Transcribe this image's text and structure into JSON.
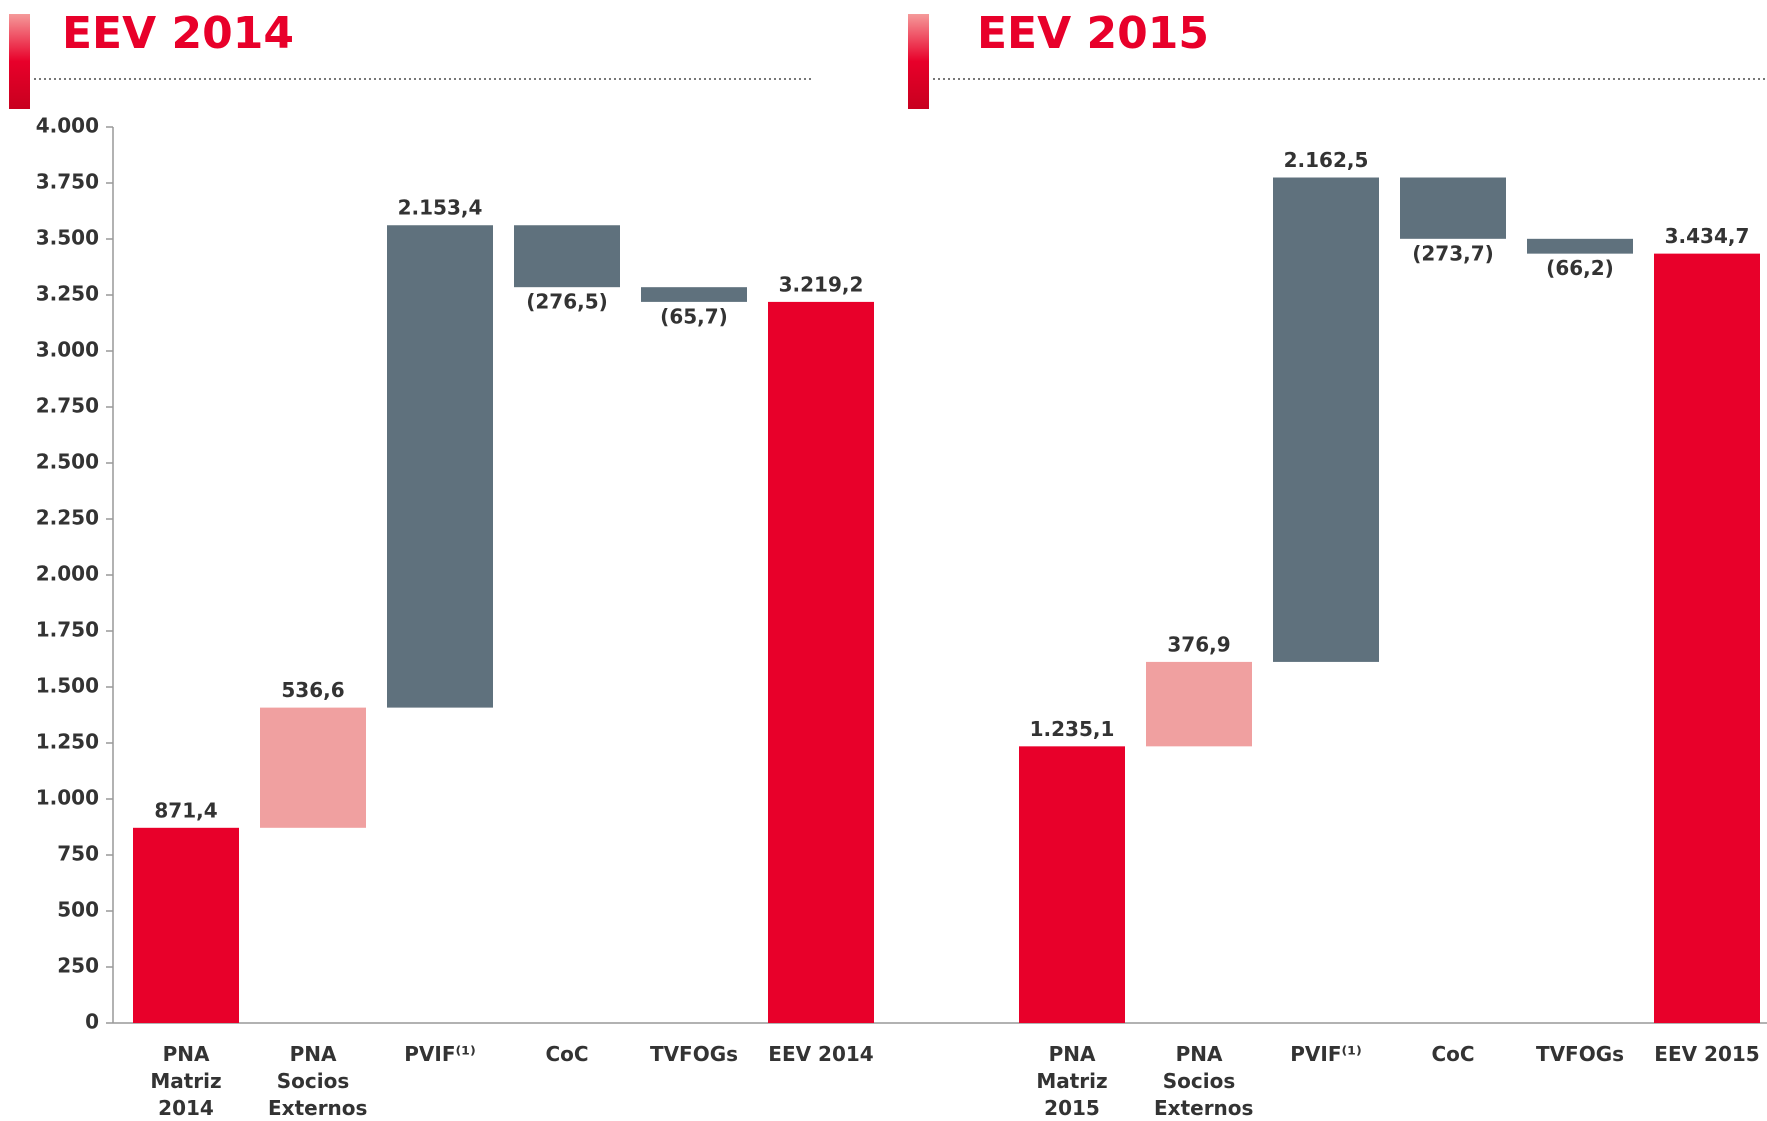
{
  "chart_data": [
    {
      "type": "waterfall",
      "title": "EEV 2014",
      "categories": [
        "PNA Matriz 2014",
        "PNA Socios Externos",
        "PVIF⁽¹⁾",
        "CoC",
        "TVFOGs",
        "EEV 2014"
      ],
      "values": [
        871.4,
        536.6,
        2153.4,
        -276.5,
        -65.7,
        3219.2
      ],
      "value_labels": [
        "871,4",
        "536,6",
        "2.153,4",
        "(276,5)",
        "(65,7)",
        "3.219,2"
      ],
      "colors": [
        "#e8002a",
        "#f0a0a0",
        "#5f717d",
        "#5f717d",
        "#5f717d",
        "#e8002a"
      ],
      "ylim": [
        0,
        4000
      ],
      "yticks": [
        0,
        250,
        500,
        750,
        {
          "value": 1000,
          "label": "1.000"
        },
        {
          "value": 1250,
          "label": "1.250"
        },
        {
          "value": 1500,
          "label": "1.500"
        },
        {
          "value": 1750,
          "label": "1.750"
        },
        {
          "value": 2000,
          "label": "2.000"
        },
        {
          "value": 2250,
          "label": "2.250"
        },
        {
          "value": 2500,
          "label": "2.500"
        },
        {
          "value": 2750,
          "label": "2.750"
        },
        {
          "value": 3000,
          "label": "3.000"
        },
        {
          "value": 3250,
          "label": "3.250"
        },
        {
          "value": 3500,
          "label": "3.500"
        },
        {
          "value": 3750,
          "label": "3.750"
        },
        {
          "value": 4000,
          "label": "4.000"
        }
      ]
    },
    {
      "type": "waterfall",
      "title": "EEV 2015",
      "categories": [
        "PNA Matriz 2015",
        "PNA Socios Externos",
        "PVIF⁽¹⁾",
        "CoC",
        "TVFOGs",
        "EEV 2015"
      ],
      "values": [
        1235.1,
        376.9,
        2162.5,
        -273.7,
        -66.2,
        3434.7
      ],
      "value_labels": [
        "1.235,1",
        "376,9",
        "2.162,5",
        "(273,7)",
        "(66,2)",
        "3.434,7"
      ],
      "colors": [
        "#e8002a",
        "#f0a0a0",
        "#5f717d",
        "#5f717d",
        "#5f717d",
        "#e8002a"
      ],
      "ylim": [
        0,
        4000
      ]
    }
  ]
}
